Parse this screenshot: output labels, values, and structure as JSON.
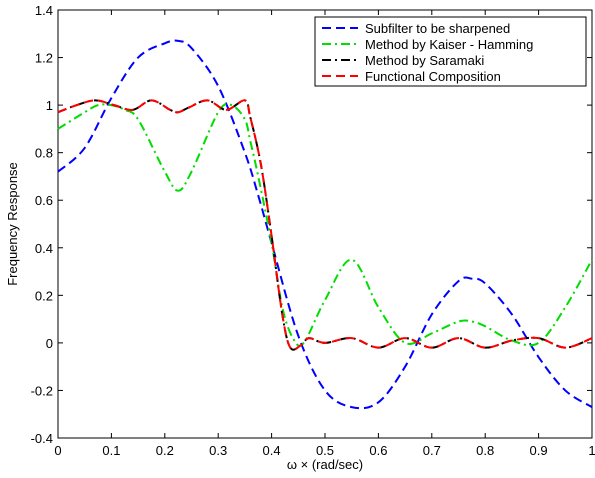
{
  "chart_data": {
    "type": "line",
    "title": "",
    "xlabel": "ω × (rad/sec)",
    "ylabel": "Frequency Response",
    "xlim": [
      0,
      1
    ],
    "ylim": [
      -0.4,
      1.4
    ],
    "xticks": [
      "0",
      "0.1",
      "0.2",
      "0.3",
      "0.4",
      "0.5",
      "0.6",
      "0.7",
      "0.8",
      "0.9",
      "1"
    ],
    "yticks": [
      "-0.4",
      "-0.2",
      "0",
      "0.2",
      "0.4",
      "0.6",
      "0.8",
      "1",
      "1.2",
      "1.4"
    ],
    "grid": false,
    "legend_position": "top-right",
    "series": [
      {
        "name": "Subfilter to be sharpened",
        "color": "#0000ff",
        "dash": "dashed",
        "x": [
          0,
          0.05,
          0.1,
          0.15,
          0.2,
          0.225,
          0.25,
          0.3,
          0.35,
          0.375,
          0.4,
          0.45,
          0.5,
          0.55,
          0.6,
          0.65,
          0.7,
          0.75,
          0.775,
          0.8,
          0.85,
          0.9,
          0.95,
          1.0
        ],
        "values": [
          0.72,
          0.82,
          1.03,
          1.2,
          1.26,
          1.27,
          1.24,
          1.08,
          0.8,
          0.62,
          0.42,
          0.03,
          -0.2,
          -0.27,
          -0.25,
          -0.1,
          0.12,
          0.26,
          0.27,
          0.25,
          0.12,
          -0.06,
          -0.2,
          -0.27
        ]
      },
      {
        "name": "Method by Kaiser - Hamming",
        "color": "#00dd00",
        "dash": "dash-dot",
        "x": [
          0,
          0.05,
          0.075,
          0.1,
          0.125,
          0.15,
          0.2,
          0.225,
          0.25,
          0.3,
          0.325,
          0.35,
          0.36,
          0.375,
          0.4,
          0.42,
          0.44,
          0.46,
          0.5,
          0.55,
          0.6,
          0.65,
          0.7,
          0.75,
          0.775,
          0.8,
          0.85,
          0.9,
          0.95,
          1.0
        ],
        "values": [
          0.9,
          0.97,
          1.0,
          1.0,
          0.98,
          0.94,
          0.72,
          0.64,
          0.72,
          0.97,
          1.0,
          0.94,
          0.85,
          0.7,
          0.42,
          0.15,
          0.02,
          0.0,
          0.18,
          0.35,
          0.15,
          0.0,
          0.04,
          0.09,
          0.09,
          0.07,
          0.01,
          0.0,
          0.15,
          0.35
        ]
      },
      {
        "name": "Method by Saramaki",
        "color": "#000000",
        "dash": "dash-dot",
        "x": [
          0,
          0.035,
          0.07,
          0.105,
          0.14,
          0.175,
          0.21,
          0.225,
          0.245,
          0.28,
          0.315,
          0.35,
          0.36,
          0.38,
          0.4,
          0.42,
          0.435,
          0.455,
          0.47,
          0.5,
          0.55,
          0.6,
          0.65,
          0.7,
          0.75,
          0.8,
          0.85,
          0.9,
          0.95,
          1.0
        ],
        "values": [
          0.97,
          1.0,
          1.02,
          1.0,
          0.98,
          1.02,
          0.98,
          0.97,
          0.99,
          1.02,
          0.98,
          1.02,
          0.95,
          0.75,
          0.45,
          0.12,
          -0.02,
          -0.01,
          0.02,
          0.0,
          0.02,
          -0.02,
          0.02,
          -0.02,
          0.02,
          -0.02,
          0.01,
          0.02,
          -0.02,
          0.02
        ]
      },
      {
        "name": "Functional Composition",
        "color": "#ff0000",
        "dash": "dashed",
        "x": [
          0,
          0.035,
          0.07,
          0.105,
          0.14,
          0.175,
          0.21,
          0.225,
          0.245,
          0.28,
          0.315,
          0.35,
          0.36,
          0.38,
          0.4,
          0.42,
          0.435,
          0.455,
          0.47,
          0.5,
          0.55,
          0.6,
          0.65,
          0.7,
          0.75,
          0.8,
          0.85,
          0.9,
          0.95,
          1.0
        ],
        "values": [
          0.97,
          1.0,
          1.02,
          1.0,
          0.98,
          1.02,
          0.98,
          0.97,
          0.99,
          1.02,
          0.98,
          1.02,
          0.95,
          0.75,
          0.45,
          0.12,
          -0.02,
          -0.01,
          0.02,
          0.0,
          0.02,
          -0.02,
          0.02,
          -0.02,
          0.02,
          -0.02,
          0.01,
          0.02,
          -0.02,
          0.02
        ]
      }
    ]
  }
}
